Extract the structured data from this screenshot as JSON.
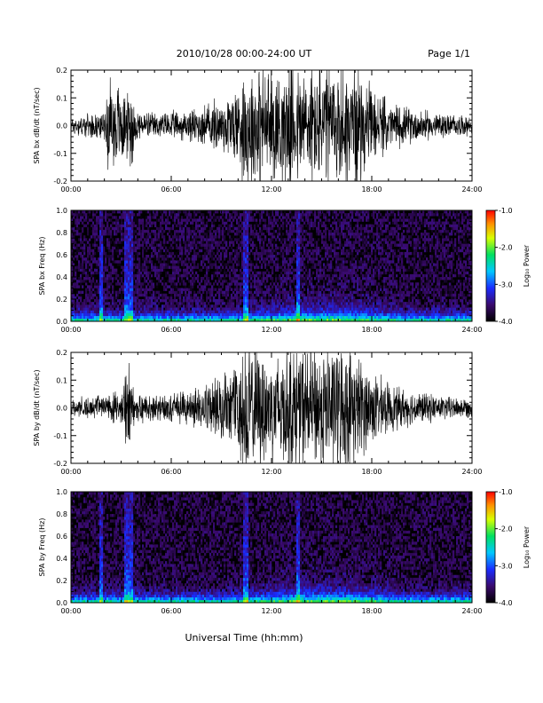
{
  "header": {
    "title": "2010/10/28  00:00-24:00 UT",
    "page": "Page 1/1"
  },
  "footer": {
    "xlabel": "Universal Time (hh:mm)"
  },
  "chart_data": [
    {
      "type": "line",
      "ylabel": "SPA bx dB/dt (nT/sec)",
      "xticks": [
        "00:00",
        "06:00",
        "12:00",
        "18:00",
        "24:00"
      ],
      "x_hours": [
        0,
        6,
        12,
        18,
        24
      ],
      "ylim": [
        -0.2,
        0.2
      ],
      "yticks": [
        -0.2,
        -0.1,
        0.0,
        0.1,
        0.2
      ],
      "ytick_labels": [
        "-0.2",
        "-0.1",
        "0.0",
        "0.1",
        "0.2"
      ],
      "envelope": {
        "hours": [
          0,
          1,
          2,
          2.3,
          3.4,
          3.6,
          3.8,
          5,
          7,
          8,
          9,
          10,
          10.5,
          11,
          12,
          13,
          14,
          15,
          16,
          17,
          18,
          19,
          20,
          21,
          22,
          23,
          24
        ],
        "amplitude": [
          0.03,
          0.035,
          0.04,
          0.17,
          0.1,
          0.18,
          0.05,
          0.04,
          0.05,
          0.07,
          0.09,
          0.14,
          0.2,
          0.2,
          0.18,
          0.2,
          0.2,
          0.2,
          0.2,
          0.2,
          0.12,
          0.08,
          0.06,
          0.05,
          0.04,
          0.035,
          0.03
        ]
      }
    },
    {
      "type": "heatmap",
      "ylabel": "SPA bx Freq (Hz)",
      "xticks": [
        "00:00",
        "06:00",
        "12:00",
        "18:00",
        "24:00"
      ],
      "x_hours": [
        0,
        6,
        12,
        18,
        24
      ],
      "ylim": [
        0.0,
        1.0
      ],
      "yticks": [
        0.0,
        0.2,
        0.4,
        0.6,
        0.8,
        1.0
      ],
      "ytick_labels": [
        "0.0",
        "0.2",
        "0.4",
        "0.6",
        "0.8",
        "1.0"
      ],
      "colorbar": {
        "label": "Log₁₀ Power",
        "range": [
          -4.0,
          -1.0
        ],
        "ticks": [
          "-1.0",
          "-2.0",
          "-3.0",
          "-4.0"
        ]
      },
      "bright_columns_hours": [
        1.8,
        3.3,
        3.6,
        10.5,
        13.6
      ],
      "activity_band_hours": [
        10,
        20
      ]
    },
    {
      "type": "line",
      "ylabel": "SPA by dB/dt (nT/sec)",
      "xticks": [
        "00:00",
        "06:00",
        "12:00",
        "18:00",
        "24:00"
      ],
      "x_hours": [
        0,
        6,
        12,
        18,
        24
      ],
      "ylim": [
        -0.2,
        0.2
      ],
      "yticks": [
        -0.2,
        -0.1,
        0.0,
        0.1,
        0.2
      ],
      "ytick_labels": [
        "-0.2",
        "-0.1",
        "0.0",
        "0.1",
        "0.2"
      ],
      "envelope": {
        "hours": [
          0,
          1,
          2,
          3,
          3.4,
          3.6,
          3.8,
          5,
          7,
          8,
          9,
          10,
          10.5,
          11,
          12,
          13,
          14,
          15,
          16,
          17,
          18,
          19,
          20,
          21,
          22,
          23,
          24
        ],
        "amplitude": [
          0.03,
          0.035,
          0.04,
          0.05,
          0.14,
          0.12,
          0.05,
          0.04,
          0.05,
          0.08,
          0.1,
          0.16,
          0.2,
          0.2,
          0.18,
          0.2,
          0.2,
          0.2,
          0.2,
          0.18,
          0.12,
          0.08,
          0.06,
          0.05,
          0.04,
          0.035,
          0.03
        ]
      }
    },
    {
      "type": "heatmap",
      "ylabel": "SPA by Freq (Hz)",
      "xticks": [
        "00:00",
        "06:00",
        "12:00",
        "18:00",
        "24:00"
      ],
      "x_hours": [
        0,
        6,
        12,
        18,
        24
      ],
      "ylim": [
        0.0,
        1.0
      ],
      "yticks": [
        0.0,
        0.2,
        0.4,
        0.6,
        0.8,
        1.0
      ],
      "ytick_labels": [
        "0.0",
        "0.2",
        "0.4",
        "0.6",
        "0.8",
        "1.0"
      ],
      "colorbar": {
        "label": "Log₁₀ Power",
        "range": [
          -4.0,
          -1.0
        ],
        "ticks": [
          "-1.0",
          "-2.0",
          "-3.0",
          "-4.0"
        ]
      },
      "bright_columns_hours": [
        1.8,
        3.3,
        3.6,
        10.5,
        13.6
      ],
      "activity_band_hours": [
        10,
        20
      ]
    }
  ]
}
